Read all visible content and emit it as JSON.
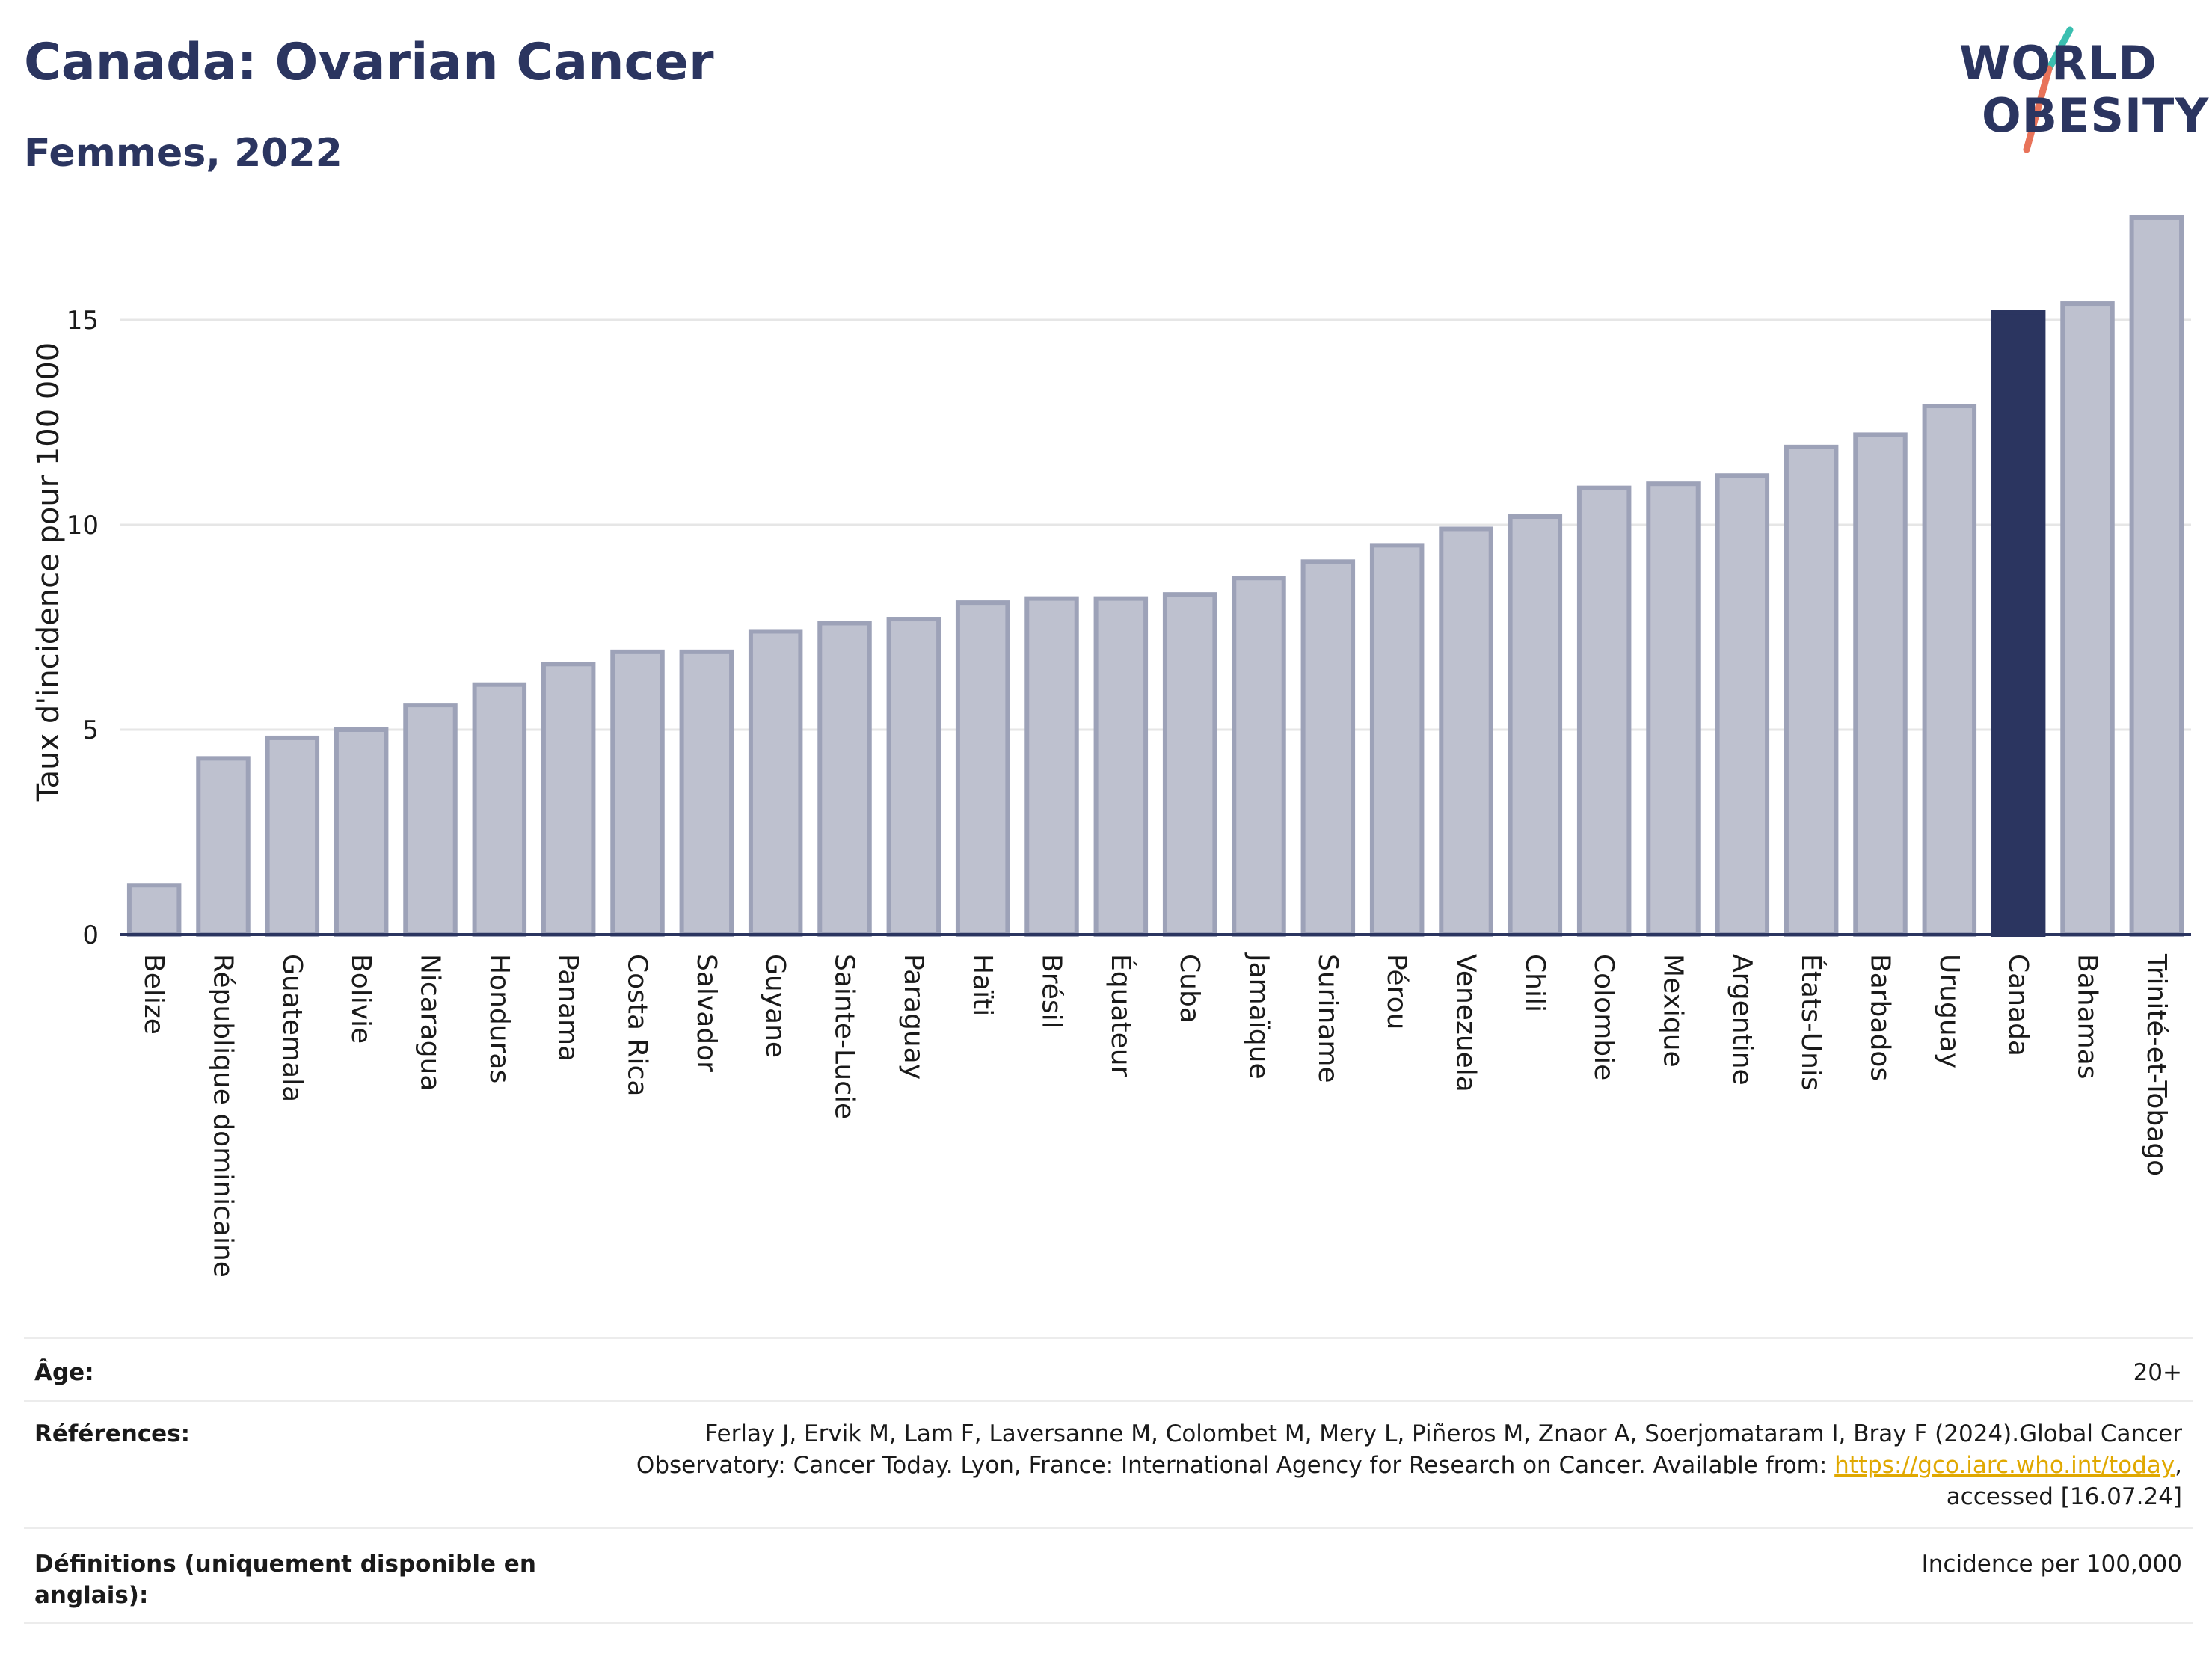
{
  "header": {
    "title": "Canada: Ovarian Cancer",
    "subtitle": "Femmes, 2022",
    "logo_line1": "WORLD",
    "logo_line2": "OBESITY"
  },
  "chart_data": {
    "type": "bar",
    "ylabel": "Taux d'incidence pour 100 000",
    "ylim": [
      0,
      17.7
    ],
    "yticks": [
      0,
      5,
      10,
      15
    ],
    "grid": true,
    "highlight": "Canada",
    "colors": {
      "bar": "#bec1cf",
      "bar_edge": "#9da2b8",
      "highlight": "#2b3560",
      "grid": "#e6e6e6",
      "axis": "#2b3560"
    },
    "categories": [
      "Belize",
      "République dominicaine",
      "Guatemala",
      "Bolivie",
      "Nicaragua",
      "Honduras",
      "Panama",
      "Costa Rica",
      "Salvador",
      "Guyane",
      "Sainte-Lucie",
      "Paraguay",
      "Haïti",
      "Brésil",
      "Équateur",
      "Cuba",
      "Jamaïque",
      "Suriname",
      "Pérou",
      "Venezuela",
      "Chili",
      "Colombie",
      "Mexique",
      "Argentine",
      "États-Unis",
      "Barbados",
      "Uruguay",
      "Canada",
      "Bahamas",
      "Trinité-et-Tobago"
    ],
    "values": [
      1.2,
      4.3,
      4.8,
      5.0,
      5.6,
      6.1,
      6.6,
      6.9,
      6.9,
      7.4,
      7.6,
      7.7,
      8.1,
      8.2,
      8.2,
      8.3,
      8.7,
      9.1,
      9.5,
      9.9,
      10.2,
      10.9,
      11.0,
      11.2,
      11.9,
      12.2,
      12.9,
      15.2,
      15.4,
      17.5
    ]
  },
  "info": {
    "age_label": "Âge:",
    "age_value": "20+",
    "ref_label": "Références:",
    "ref_line1": "Ferlay J, Ervik M, Lam F, Laversanne M, Colombet M, Mery L, Piñeros M, Znaor A, Soerjomataram I, Bray F (2024).Global Cancer",
    "ref_line2_pre": "Observatory: Cancer Today. Lyon, France: International Agency for Research on Cancer. Available from: ",
    "ref_link": "https://gco.iarc.who.int/today",
    "ref_line2_post": ",",
    "ref_line3": "accessed [16.07.24]",
    "def_label": "Définitions (uniquement disponible en anglais):",
    "def_value": "Incidence per 100,000"
  }
}
